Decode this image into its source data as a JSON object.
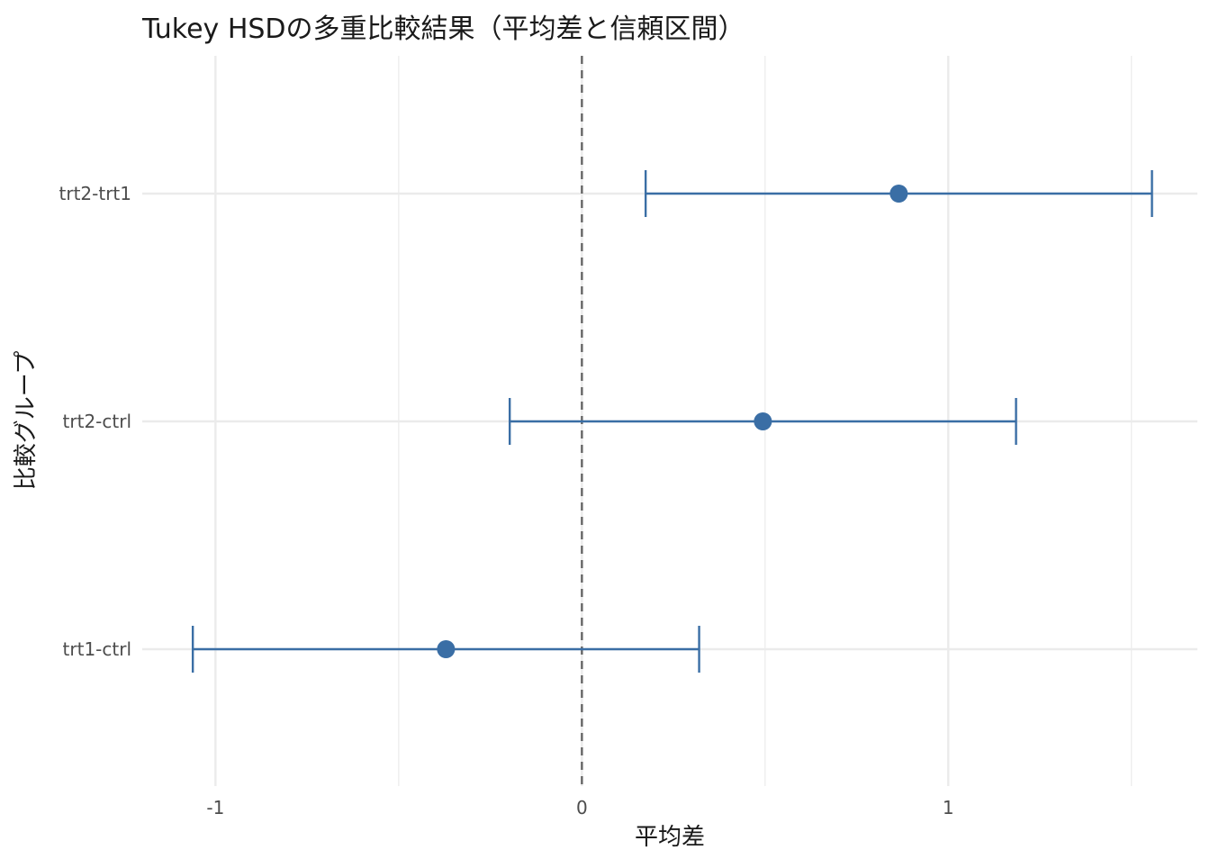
{
  "chart_data": {
    "type": "errorbar",
    "title": "Tukey HSDの多重比較結果（平均差と信頼区間）",
    "xlabel": "平均差",
    "ylabel": "比較グループ",
    "xlim": [
      -1.2,
      1.68
    ],
    "x_ticks": [
      -1,
      0,
      1
    ],
    "x_tick_labels": [
      "-1",
      "0",
      "1"
    ],
    "reference_line": 0,
    "grid": true,
    "colors": {
      "series": "#3a6ea5",
      "grid": "#ebebeb",
      "reference": "#666666"
    },
    "categories": [
      "trt2-trt1",
      "trt2-ctrl",
      "trt1-ctrl"
    ],
    "estimates": [
      0.865,
      0.494,
      -0.371
    ],
    "lower": [
      0.174,
      -0.197,
      -1.062
    ],
    "upper": [
      1.556,
      1.185,
      0.32
    ]
  }
}
